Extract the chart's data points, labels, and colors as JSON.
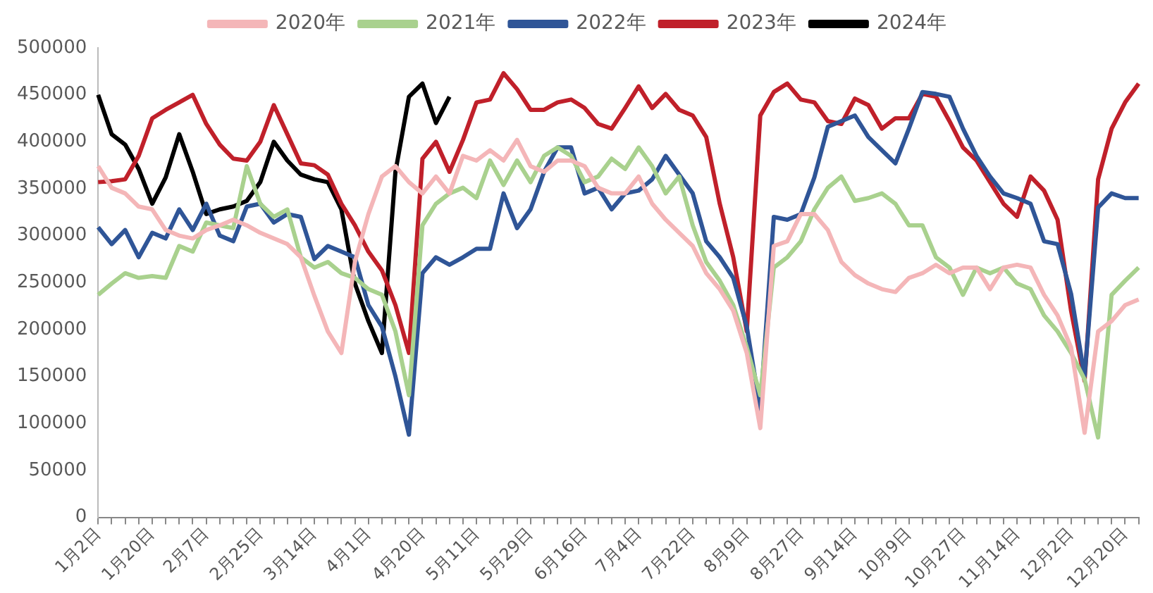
{
  "chart_data": {
    "type": "line",
    "categories": [
      "1月2日",
      null,
      null,
      null,
      "1月20日",
      null,
      null,
      null,
      "2月7日",
      null,
      null,
      null,
      "2月25日",
      null,
      null,
      null,
      "3月14日",
      null,
      null,
      null,
      "4月1日",
      null,
      null,
      null,
      "4月20日",
      null,
      null,
      null,
      "5月11日",
      null,
      null,
      null,
      "5月29日",
      null,
      null,
      null,
      "6月16日",
      null,
      null,
      null,
      "7月4日",
      null,
      null,
      null,
      "7月22日",
      null,
      null,
      null,
      "8月9日",
      null,
      null,
      null,
      "8月27日",
      null,
      null,
      null,
      "9月14日",
      null,
      null,
      null,
      "10月9日",
      null,
      null,
      null,
      "10月27日",
      null,
      null,
      null,
      "11月14日",
      null,
      null,
      null,
      "12月2日",
      null,
      null,
      null,
      "12月20日",
      null
    ],
    "series": [
      {
        "name": "2020年",
        "color": "#f4b6b8",
        "values": [
          374000,
          351000,
          345000,
          331000,
          328000,
          306000,
          300000,
          297000,
          306000,
          311000,
          317000,
          311000,
          303000,
          297000,
          291000,
          277000,
          236000,
          198000,
          175000,
          272000,
          323000,
          363000,
          374000,
          357000,
          345000,
          363000,
          345000,
          385000,
          380000,
          391000,
          380000,
          402000,
          374000,
          368000,
          380000,
          380000,
          374000,
          351000,
          345000,
          345000,
          363000,
          334000,
          317000,
          303000,
          289000,
          260000,
          243000,
          220000,
          175000,
          95000,
          289000,
          294000,
          323000,
          323000,
          306000,
          272000,
          258000,
          249000,
          243000,
          240000,
          255000,
          260000,
          269000,
          260000,
          266000,
          266000,
          243000,
          266000,
          269000,
          266000,
          237000,
          215000,
          181000,
          90000,
          198000,
          209000,
          226000,
          232000
        ]
      },
      {
        "name": "2021年",
        "color": "#a9d18e",
        "values": [
          237000,
          249000,
          260000,
          255000,
          257000,
          255000,
          289000,
          283000,
          314000,
          311000,
          308000,
          374000,
          334000,
          320000,
          328000,
          277000,
          266000,
          272000,
          260000,
          255000,
          243000,
          237000,
          198000,
          130000,
          311000,
          334000,
          345000,
          351000,
          340000,
          380000,
          354000,
          380000,
          357000,
          385000,
          394000,
          385000,
          357000,
          363000,
          382000,
          371000,
          394000,
          374000,
          345000,
          363000,
          311000,
          272000,
          252000,
          226000,
          181000,
          130000,
          266000,
          277000,
          294000,
          328000,
          351000,
          363000,
          337000,
          340000,
          345000,
          334000,
          311000,
          311000,
          277000,
          266000,
          237000,
          266000,
          260000,
          266000,
          249000,
          243000,
          215000,
          198000,
          175000,
          147000,
          85000,
          237000,
          252000,
          266000
        ]
      },
      {
        "name": "2022年",
        "color": "#2f5597",
        "values": [
          309000,
          291000,
          306000,
          277000,
          303000,
          297000,
          328000,
          306000,
          334000,
          300000,
          294000,
          331000,
          334000,
          314000,
          323000,
          320000,
          275000,
          289000,
          283000,
          277000,
          226000,
          203000,
          150000,
          88000,
          260000,
          277000,
          269000,
          277000,
          286000,
          286000,
          345000,
          308000,
          328000,
          368000,
          394000,
          394000,
          345000,
          351000,
          328000,
          345000,
          348000,
          360000,
          385000,
          365000,
          345000,
          294000,
          277000,
          255000,
          203000,
          115000,
          320000,
          317000,
          323000,
          362000,
          416000,
          422000,
          428000,
          405000,
          391000,
          377000,
          414000,
          453000,
          451000,
          448000,
          414000,
          385000,
          363000,
          345000,
          340000,
          334000,
          294000,
          291000,
          238000,
          150000,
          330000,
          345000,
          340000,
          340000
        ]
      },
      {
        "name": "2023年",
        "color": "#c0202a",
        "values": [
          357000,
          358000,
          360000,
          385000,
          425000,
          434000,
          442000,
          450000,
          419000,
          397000,
          382000,
          380000,
          400000,
          439000,
          408000,
          377000,
          375000,
          365000,
          334000,
          311000,
          283000,
          263000,
          226000,
          175000,
          382000,
          400000,
          368000,
          402000,
          442000,
          445000,
          473000,
          456000,
          434000,
          434000,
          442000,
          445000,
          436000,
          419000,
          414000,
          436000,
          459000,
          436000,
          451000,
          434000,
          428000,
          405000,
          334000,
          277000,
          198000,
          428000,
          453000,
          462000,
          445000,
          442000,
          422000,
          419000,
          446000,
          439000,
          414000,
          425000,
          425000,
          451000,
          448000,
          422000,
          394000,
          380000,
          357000,
          334000,
          320000,
          363000,
          348000,
          317000,
          220000,
          145000,
          360000,
          414000,
          442000,
          462000
        ]
      },
      {
        "name": "2024年",
        "color": "#000000",
        "values": [
          450000,
          408000,
          397000,
          371000,
          334000,
          362000,
          408000,
          368000,
          323000,
          328000,
          331000,
          337000,
          357000,
          400000,
          380000,
          365000,
          360000,
          357000,
          328000,
          249000,
          209000,
          175000,
          368000,
          448000,
          462000,
          420000,
          448000,
          null,
          null,
          null,
          null,
          null,
          null,
          null,
          null,
          null,
          null,
          null,
          null,
          null,
          null,
          null,
          null,
          null,
          null,
          null,
          null,
          null,
          null,
          null,
          null,
          null,
          null,
          null,
          null,
          null,
          null,
          null,
          null,
          null,
          null,
          null,
          null,
          null,
          null,
          null,
          null,
          null,
          null,
          null,
          null,
          null,
          null,
          null,
          null,
          null,
          null,
          null
        ]
      }
    ],
    "ylim": [
      0,
      500000
    ],
    "yticks": [
      0,
      50000,
      100000,
      150000,
      200000,
      250000,
      300000,
      350000,
      400000,
      450000,
      500000
    ],
    "grid": false,
    "legend": "top",
    "marker": "none",
    "line_style": "solid"
  }
}
